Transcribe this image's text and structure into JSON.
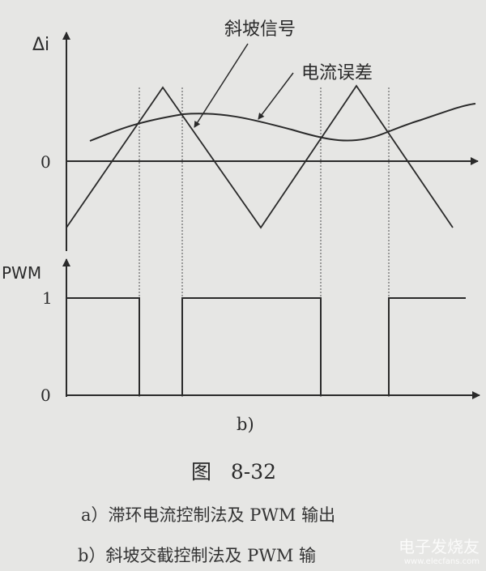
{
  "figure": {
    "top_plot": {
      "y_axis_label": "Δi",
      "zero_label": "0",
      "ramp_label": "斜坡信号",
      "error_label": "电流误差"
    },
    "pwm_plot": {
      "y_axis_label": "PWM",
      "high_label": "1",
      "low_label": "0",
      "pwm_levels": [
        1,
        0,
        1,
        0,
        1
      ]
    },
    "subfigure_label": "b)",
    "figure_number": "图   8-32",
    "captions": [
      "a）滞环电流控制法及 PWM 输出",
      "b）斜坡交截控制法及 PWM 输"
    ]
  },
  "watermark": {
    "text": "电子发烧友",
    "url_text": "www.elecfans.com"
  },
  "colors": {
    "background": "#e6e6e4",
    "ink": "#2a2a2a"
  }
}
